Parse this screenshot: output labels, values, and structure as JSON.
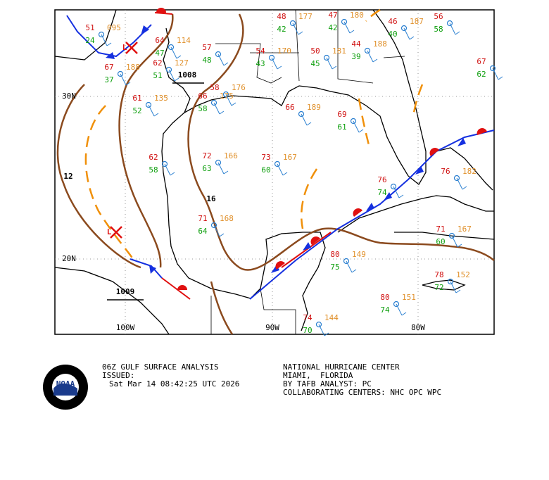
{
  "map": {
    "lat_labels": [
      "30N",
      "20N"
    ],
    "lon_labels": [
      "100W",
      "90W",
      "80W"
    ],
    "isobar_labels": [
      "1008",
      "1009",
      "12",
      "16"
    ],
    "pressure_centers": [
      "L",
      "L"
    ],
    "stations": [
      {
        "temp": "51",
        "dew": "24",
        "pres": "095"
      },
      {
        "temp": "64",
        "dew": "47",
        "pres": "114"
      },
      {
        "temp": "67",
        "dew": "37",
        "pres": "188"
      },
      {
        "temp": "62",
        "dew": "51",
        "pres": "127"
      },
      {
        "temp": "57",
        "dew": "48"
      },
      {
        "temp": "54",
        "dew": "43",
        "pres": "170"
      },
      {
        "temp": "48",
        "dew": "42",
        "pres": "177"
      },
      {
        "temp": "47",
        "dew": "42",
        "pres": "180"
      },
      {
        "temp": "50",
        "dew": "45",
        "pres": "181"
      },
      {
        "temp": "44",
        "dew": "39",
        "pres": "188"
      },
      {
        "temp": "46",
        "dew": "40",
        "pres": "187"
      },
      {
        "temp": "61",
        "dew": "52",
        "pres": "135"
      },
      {
        "temp": "58",
        "pres": "176"
      },
      {
        "temp": "66",
        "dew": "58",
        "pres": "175"
      },
      {
        "temp": "66",
        "pres": "189"
      },
      {
        "temp": "69",
        "dew": "61"
      },
      {
        "temp": "72",
        "dew": "63",
        "pres": "166"
      },
      {
        "temp": "73",
        "dew": "60",
        "pres": "167"
      },
      {
        "temp": "71",
        "dew": "64",
        "pres": "168"
      },
      {
        "temp": "80",
        "dew": "75",
        "pres": "149"
      },
      {
        "temp": "80",
        "dew": "74",
        "pres": "151"
      },
      {
        "temp": "78",
        "dew": "72",
        "pres": "152"
      },
      {
        "temp": "74",
        "dew": "70",
        "pres": "144"
      },
      {
        "temp": "76",
        "pres": "182"
      },
      {
        "temp": "62",
        "dew": "58"
      },
      {
        "temp": "67",
        "dew": "62"
      },
      {
        "temp": "76",
        "dew": "74"
      },
      {
        "temp": "71",
        "dew": "60",
        "pres": "167"
      },
      {
        "temp": "56",
        "dew": "58"
      }
    ]
  },
  "footer": {
    "product": "06Z GULF SURFACE ANALYSIS",
    "issued_label": "ISSUED:",
    "issued_time": "Sat Mar 14 08:42:25 UTC 2026",
    "center": "NATIONAL HURRICANE CENTER",
    "location": "MIAMI,  FLORIDA",
    "analyst": "BY TAFB ANALYST: PC",
    "collaborating": "COLLABORATING CENTERS: NHC OPC WPC",
    "logo": "NOAA"
  }
}
